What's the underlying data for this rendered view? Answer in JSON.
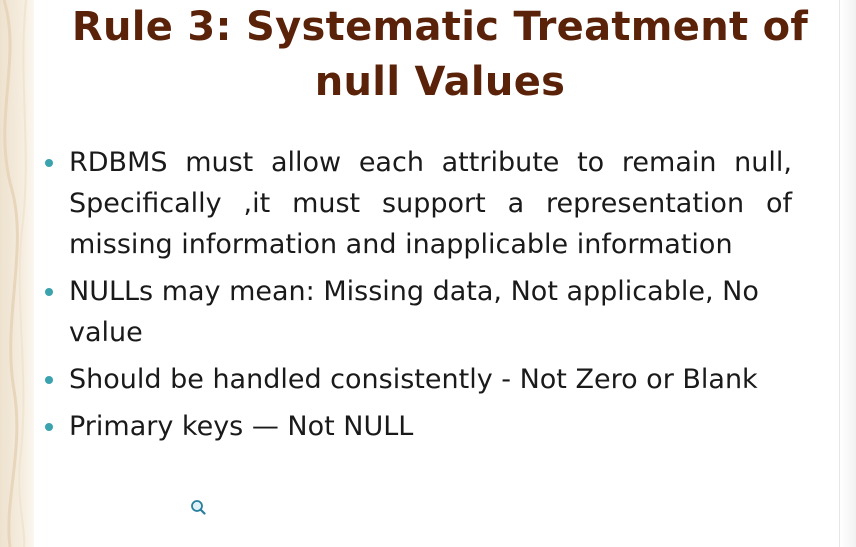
{
  "slide": {
    "title": "Rule 3: Systematic Treatment of null Values",
    "bullets": [
      "RDBMS must allow each attribute to remain null, Specifically ,it must support a representation of missing information and inapplicable information",
      "NULLs may mean: Missing data, Not applicable, No value",
      " Should be handled consistently - Not Zero or Blank",
      "Primary keys — Not NULL"
    ]
  },
  "colors": {
    "title": "#5a2208",
    "bullet_marker": "#3ba3ae",
    "body_text": "#1a1a1a",
    "left_border": "#eee2cf"
  },
  "icons": {
    "cursor": "magnifier-cursor-icon",
    "bullet": "round-bullet-icon"
  }
}
